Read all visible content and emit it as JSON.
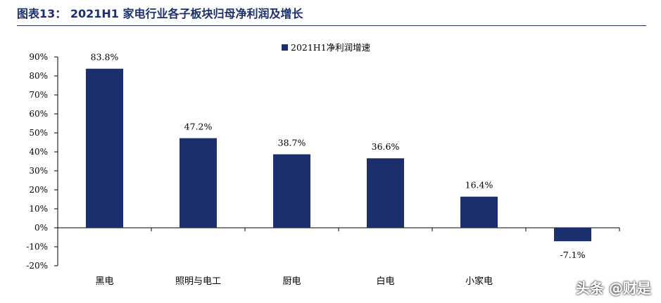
{
  "title": "图表13：  2021H1 家电行业各子板块归母净利润及增长",
  "watermark": "头条 @财是",
  "colors": {
    "bar": "#1b2f6b",
    "axis": "#000000",
    "title": "#1b2f6b"
  },
  "chart_data": {
    "type": "bar",
    "categories": [
      "黑电",
      "照明与电工",
      "厨电",
      "白电",
      "小家电",
      ""
    ],
    "series": [
      {
        "name": "2021H1净利润增速",
        "values": [
          83.8,
          47.2,
          38.7,
          36.6,
          16.4,
          -7.1
        ]
      }
    ],
    "data_labels": [
      "83.8%",
      "47.2%",
      "38.7%",
      "36.6%",
      "16.4%",
      "-7.1%"
    ],
    "yticks": [
      90,
      80,
      70,
      60,
      50,
      40,
      30,
      20,
      10,
      0,
      -10,
      -20
    ],
    "ytick_labels": [
      "90%",
      "80%",
      "70%",
      "60%",
      "50%",
      "40%",
      "30%",
      "20%",
      "10%",
      "0%",
      "-10%",
      "-20%"
    ],
    "ylim": [
      -20,
      90
    ],
    "legend_position": "top-center",
    "grid": false
  }
}
